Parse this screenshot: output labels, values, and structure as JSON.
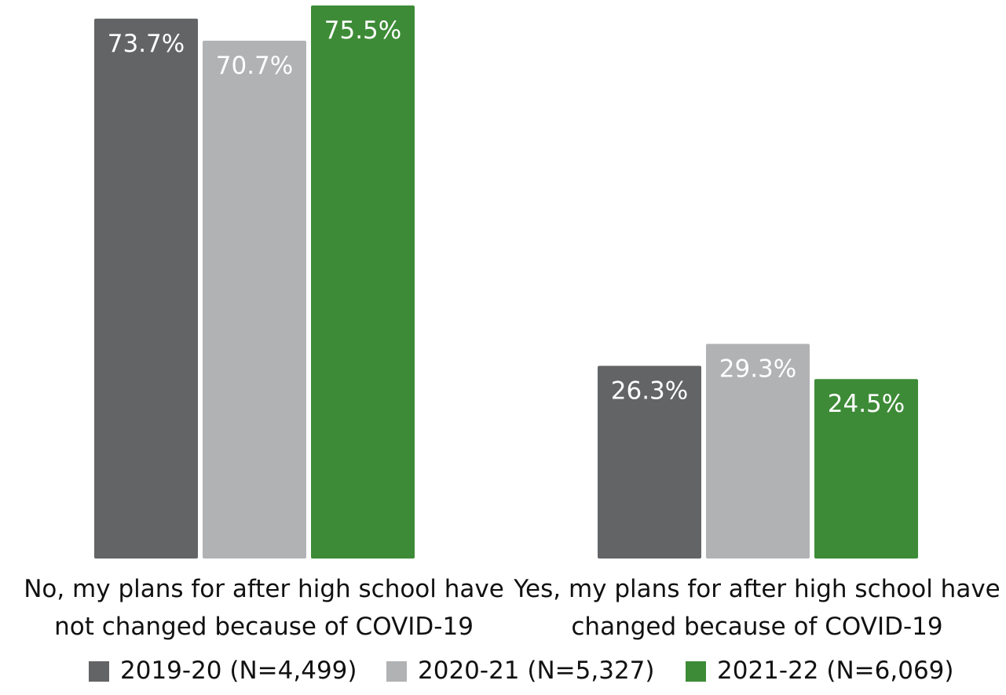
{
  "chart_data": {
    "type": "bar",
    "categories": [
      [
        "No, my plans for after high school have",
        "not changed because of COVID-19"
      ],
      [
        "Yes, my plans for after high school have",
        "changed because of COVID-19"
      ]
    ],
    "series": [
      {
        "name": "2019-20 (N=4,499)",
        "color": "#636466",
        "values": [
          73.7,
          26.3
        ],
        "labels": [
          "73.7%",
          "26.3%"
        ]
      },
      {
        "name": "2020-21 (N=5,327)",
        "color": "#b1b2b4",
        "values": [
          70.7,
          29.3
        ],
        "labels": [
          "70.7%",
          "29.3%"
        ]
      },
      {
        "name": "2021-22 (N=6,069)",
        "color": "#3d8b37",
        "values": [
          75.5,
          24.5
        ],
        "labels": [
          "75.5%",
          "24.5%"
        ]
      }
    ],
    "ylim": [
      0,
      75.5
    ],
    "grid": false,
    "legend_position": "bottom",
    "title": "",
    "xlabel": "",
    "ylabel": ""
  }
}
